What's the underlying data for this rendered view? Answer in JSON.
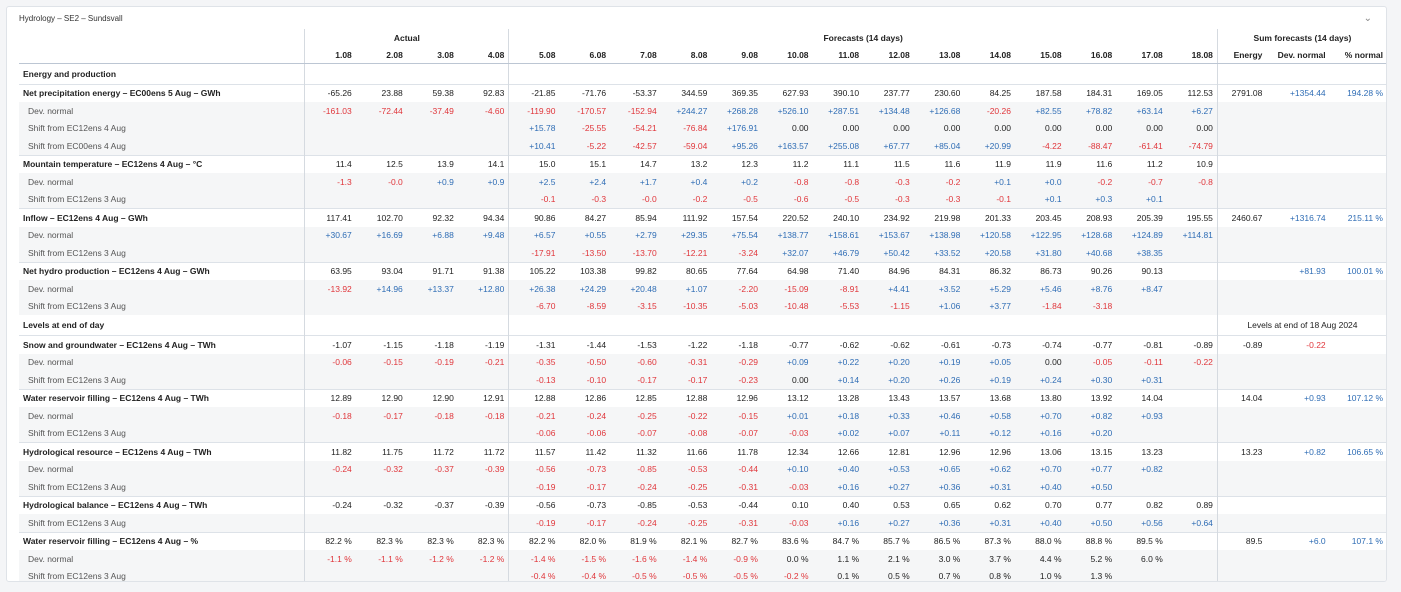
{
  "panel": {
    "title": "Hydrology – SE2 – Sundsvall",
    "collapse_icon": "chevron-down-icon"
  },
  "groups": {
    "actual": "Actual",
    "forecasts": "Forecasts (14 days)",
    "sums": "Sum forecasts (14 days)"
  },
  "actual_dates": [
    "1.08",
    "2.08",
    "3.08",
    "4.08"
  ],
  "forecast_dates": [
    "5.08",
    "6.08",
    "7.08",
    "8.08",
    "9.08",
    "10.08",
    "11.08",
    "12.08",
    "13.08",
    "14.08",
    "15.08",
    "16.08",
    "17.08",
    "18.08"
  ],
  "sum_headers": [
    "Energy",
    "Dev. normal",
    "% normal"
  ],
  "colors": {
    "negative": "#e0363b",
    "positive": "#2f6db5"
  },
  "rows": [
    {
      "type": "section",
      "label": "Energy and production",
      "values": [],
      "sums": []
    },
    {
      "type": "main",
      "label": "Net precipitation energy – EC00ens 5 Aug – GWh",
      "values": [
        "-65.26",
        "23.88",
        "59.38",
        "92.83",
        "-21.85",
        "-71.76",
        "-53.37",
        "344.59",
        "369.35",
        "627.93",
        "390.10",
        "237.77",
        "230.60",
        "84.25",
        "187.58",
        "184.31",
        "169.05",
        "112.53"
      ],
      "sums": [
        "2791.08",
        "+1354.44",
        "194.28 %"
      ]
    },
    {
      "type": "sub",
      "label": "Dev. normal",
      "values": [
        "-161.03",
        "-72.44",
        "-37.49",
        "-4.60",
        "-119.90",
        "-170.57",
        "-152.94",
        "+244.27",
        "+268.28",
        "+526.10",
        "+287.51",
        "+134.48",
        "+126.68",
        "-20.26",
        "+82.55",
        "+78.82",
        "+63.14",
        "+6.27"
      ],
      "sums": []
    },
    {
      "type": "sub",
      "label": "Shift from EC12ens 4 Aug",
      "values": [
        "",
        "",
        "",
        "",
        "+15.78",
        "-25.55",
        "-54.21",
        "-76.84",
        "+176.91",
        "0.00",
        "0.00",
        "0.00",
        "0.00",
        "0.00",
        "0.00",
        "0.00",
        "0.00",
        "0.00"
      ],
      "sums": []
    },
    {
      "type": "sub",
      "label": "Shift from EC00ens 4 Aug",
      "values": [
        "",
        "",
        "",
        "",
        "+10.41",
        "-5.22",
        "-42.57",
        "-59.04",
        "+95.26",
        "+163.57",
        "+255.08",
        "+67.77",
        "+85.04",
        "+20.99",
        "-4.22",
        "-88.47",
        "-61.41",
        "-74.79"
      ],
      "sums": []
    },
    {
      "type": "main",
      "label": "Mountain temperature – EC12ens 4 Aug – °C",
      "values": [
        "11.4",
        "12.5",
        "13.9",
        "14.1",
        "15.0",
        "15.1",
        "14.7",
        "13.2",
        "12.3",
        "11.2",
        "11.1",
        "11.5",
        "11.6",
        "11.9",
        "11.9",
        "11.6",
        "11.2",
        "10.9"
      ],
      "sums": []
    },
    {
      "type": "sub",
      "label": "Dev. normal",
      "values": [
        "-1.3",
        "-0.0",
        "+0.9",
        "+0.9",
        "+2.5",
        "+2.4",
        "+1.7",
        "+0.4",
        "+0.2",
        "-0.8",
        "-0.8",
        "-0.3",
        "-0.2",
        "+0.1",
        "+0.0",
        "-0.2",
        "-0.7",
        "-0.8"
      ],
      "sums": []
    },
    {
      "type": "sub",
      "label": "Shift from EC12ens 3 Aug",
      "values": [
        "",
        "",
        "",
        "",
        "-0.1",
        "-0.3",
        "-0.0",
        "-0.2",
        "-0.5",
        "-0.6",
        "-0.5",
        "-0.3",
        "-0.3",
        "-0.1",
        "+0.1",
        "+0.3",
        "+0.1",
        ""
      ],
      "sums": []
    },
    {
      "type": "main",
      "label": "Inflow – EC12ens 4 Aug – GWh",
      "values": [
        "117.41",
        "102.70",
        "92.32",
        "94.34",
        "90.86",
        "84.27",
        "85.94",
        "111.92",
        "157.54",
        "220.52",
        "240.10",
        "234.92",
        "219.98",
        "201.33",
        "203.45",
        "208.93",
        "205.39",
        "195.55"
      ],
      "sums": [
        "2460.67",
        "+1316.74",
        "215.11 %"
      ]
    },
    {
      "type": "sub",
      "label": "Dev. normal",
      "values": [
        "+30.67",
        "+16.69",
        "+6.88",
        "+9.48",
        "+6.57",
        "+0.55",
        "+2.79",
        "+29.35",
        "+75.54",
        "+138.77",
        "+158.61",
        "+153.67",
        "+138.98",
        "+120.58",
        "+122.95",
        "+128.68",
        "+124.89",
        "+114.81"
      ],
      "sums": []
    },
    {
      "type": "sub",
      "label": "Shift from EC12ens 3 Aug",
      "values": [
        "",
        "",
        "",
        "",
        "-17.91",
        "-13.50",
        "-13.70",
        "-12.21",
        "-3.24",
        "+32.07",
        "+46.79",
        "+50.42",
        "+33.52",
        "+20.58",
        "+31.80",
        "+40.68",
        "+38.35",
        ""
      ],
      "sums": []
    },
    {
      "type": "main",
      "label": "Net hydro production – EC12ens 4 Aug – GWh",
      "values": [
        "63.95",
        "93.04",
        "91.71",
        "91.38",
        "105.22",
        "103.38",
        "99.82",
        "80.65",
        "77.64",
        "64.98",
        "71.40",
        "84.96",
        "84.31",
        "86.32",
        "86.73",
        "90.26",
        "90.13",
        ""
      ],
      "sums": [
        "",
        "+81.93",
        "100.01 %"
      ]
    },
    {
      "type": "sub",
      "label": "Dev. normal",
      "values": [
        "-13.92",
        "+14.96",
        "+13.37",
        "+12.80",
        "+26.38",
        "+24.29",
        "+20.48",
        "+1.07",
        "-2.20",
        "-15.09",
        "-8.91",
        "+4.41",
        "+3.52",
        "+5.29",
        "+5.46",
        "+8.76",
        "+8.47",
        ""
      ],
      "sums": []
    },
    {
      "type": "sub",
      "label": "Shift from EC12ens 3 Aug",
      "values": [
        "",
        "",
        "",
        "",
        "-6.70",
        "-8.59",
        "-3.15",
        "-10.35",
        "-5.03",
        "-10.48",
        "-5.53",
        "-1.15",
        "+1.06",
        "+3.77",
        "-1.84",
        "-3.18",
        "",
        ""
      ],
      "sums": []
    },
    {
      "type": "section",
      "label": "Levels at end of day",
      "values": [],
      "sums": [],
      "sum_title": "Levels at end of 18 Aug 2024"
    },
    {
      "type": "main",
      "label": "Snow and groundwater – EC12ens 4 Aug – TWh",
      "values": [
        "-1.07",
        "-1.15",
        "-1.18",
        "-1.19",
        "-1.31",
        "-1.44",
        "-1.53",
        "-1.22",
        "-1.18",
        "-0.77",
        "-0.62",
        "-0.62",
        "-0.61",
        "-0.73",
        "-0.74",
        "-0.77",
        "-0.81",
        "-0.89"
      ],
      "sums": [
        "-0.89",
        "-0.22",
        ""
      ]
    },
    {
      "type": "sub",
      "label": "Dev. normal",
      "values": [
        "-0.06",
        "-0.15",
        "-0.19",
        "-0.21",
        "-0.35",
        "-0.50",
        "-0.60",
        "-0.31",
        "-0.29",
        "+0.09",
        "+0.22",
        "+0.20",
        "+0.19",
        "+0.05",
        "0.00",
        "-0.05",
        "-0.11",
        "-0.22"
      ],
      "sums": []
    },
    {
      "type": "sub",
      "label": "Shift from EC12ens 3 Aug",
      "values": [
        "",
        "",
        "",
        "",
        "-0.13",
        "-0.10",
        "-0.17",
        "-0.17",
        "-0.23",
        "0.00",
        "+0.14",
        "+0.20",
        "+0.26",
        "+0.19",
        "+0.24",
        "+0.30",
        "+0.31",
        ""
      ],
      "sums": []
    },
    {
      "type": "main",
      "label": "Water reservoir filling – EC12ens 4 Aug – TWh",
      "values": [
        "12.89",
        "12.90",
        "12.90",
        "12.91",
        "12.88",
        "12.86",
        "12.85",
        "12.88",
        "12.96",
        "13.12",
        "13.28",
        "13.43",
        "13.57",
        "13.68",
        "13.80",
        "13.92",
        "14.04",
        ""
      ],
      "sums": [
        "14.04",
        "+0.93",
        "107.12 %"
      ]
    },
    {
      "type": "sub",
      "label": "Dev. normal",
      "values": [
        "-0.18",
        "-0.17",
        "-0.18",
        "-0.18",
        "-0.21",
        "-0.24",
        "-0.25",
        "-0.22",
        "-0.15",
        "+0.01",
        "+0.18",
        "+0.33",
        "+0.46",
        "+0.58",
        "+0.70",
        "+0.82",
        "+0.93",
        ""
      ],
      "sums": []
    },
    {
      "type": "sub",
      "label": "Shift from EC12ens 3 Aug",
      "values": [
        "",
        "",
        "",
        "",
        "-0.06",
        "-0.06",
        "-0.07",
        "-0.08",
        "-0.07",
        "-0.03",
        "+0.02",
        "+0.07",
        "+0.11",
        "+0.12",
        "+0.16",
        "+0.20",
        "",
        ""
      ],
      "sums": []
    },
    {
      "type": "main",
      "label": "Hydrological resource – EC12ens 4 Aug – TWh",
      "values": [
        "11.82",
        "11.75",
        "11.72",
        "11.72",
        "11.57",
        "11.42",
        "11.32",
        "11.66",
        "11.78",
        "12.34",
        "12.66",
        "12.81",
        "12.96",
        "12.96",
        "13.06",
        "13.15",
        "13.23",
        ""
      ],
      "sums": [
        "13.23",
        "+0.82",
        "106.65 %"
      ]
    },
    {
      "type": "sub",
      "label": "Dev. normal",
      "values": [
        "-0.24",
        "-0.32",
        "-0.37",
        "-0.39",
        "-0.56",
        "-0.73",
        "-0.85",
        "-0.53",
        "-0.44",
        "+0.10",
        "+0.40",
        "+0.53",
        "+0.65",
        "+0.62",
        "+0.70",
        "+0.77",
        "+0.82",
        ""
      ],
      "sums": []
    },
    {
      "type": "sub",
      "label": "Shift from EC12ens 3 Aug",
      "values": [
        "",
        "",
        "",
        "",
        "-0.19",
        "-0.17",
        "-0.24",
        "-0.25",
        "-0.31",
        "-0.03",
        "+0.16",
        "+0.27",
        "+0.36",
        "+0.31",
        "+0.40",
        "+0.50",
        "",
        ""
      ],
      "sums": []
    },
    {
      "type": "main",
      "label": "Hydrological balance – EC12ens 4 Aug – TWh",
      "values": [
        "-0.24",
        "-0.32",
        "-0.37",
        "-0.39",
        "-0.56",
        "-0.73",
        "-0.85",
        "-0.53",
        "-0.44",
        "0.10",
        "0.40",
        "0.53",
        "0.65",
        "0.62",
        "0.70",
        "0.77",
        "0.82",
        "0.89"
      ],
      "sums": []
    },
    {
      "type": "sub",
      "label": "Shift from EC12ens 3 Aug",
      "values": [
        "",
        "",
        "",
        "",
        "-0.19",
        "-0.17",
        "-0.24",
        "-0.25",
        "-0.31",
        "-0.03",
        "+0.16",
        "+0.27",
        "+0.36",
        "+0.31",
        "+0.40",
        "+0.50",
        "+0.56",
        "+0.64"
      ],
      "sums": []
    },
    {
      "type": "main",
      "label": "Water reservoir filling – EC12ens 4 Aug – %",
      "values": [
        "82.2 %",
        "82.3 %",
        "82.3 %",
        "82.3 %",
        "82.2 %",
        "82.0 %",
        "81.9 %",
        "82.1 %",
        "82.7 %",
        "83.6 %",
        "84.7 %",
        "85.7 %",
        "86.5 %",
        "87.3 %",
        "88.0 %",
        "88.8 %",
        "89.5 %",
        ""
      ],
      "sums": [
        "89.5",
        "+6.0",
        "107.1 %"
      ]
    },
    {
      "type": "sub",
      "label": "Dev. normal",
      "values": [
        "-1.1 %",
        "-1.1 %",
        "-1.2 %",
        "-1.2 %",
        "-1.4 %",
        "-1.5 %",
        "-1.6 %",
        "-1.4 %",
        "-0.9 %",
        "0.0 %",
        "1.1 %",
        "2.1 %",
        "3.0 %",
        "3.7 %",
        "4.4 %",
        "5.2 %",
        "6.0 %",
        ""
      ],
      "sums": []
    },
    {
      "type": "sub",
      "label": "Shift from EC12ens 3 Aug",
      "values": [
        "",
        "",
        "",
        "",
        "-0.4 %",
        "-0.4 %",
        "-0.5 %",
        "-0.5 %",
        "-0.5 %",
        "-0.2 %",
        "0.1 %",
        "0.5 %",
        "0.7 %",
        "0.8 %",
        "1.0 %",
        "1.3 %",
        "",
        ""
      ],
      "sums": []
    }
  ]
}
